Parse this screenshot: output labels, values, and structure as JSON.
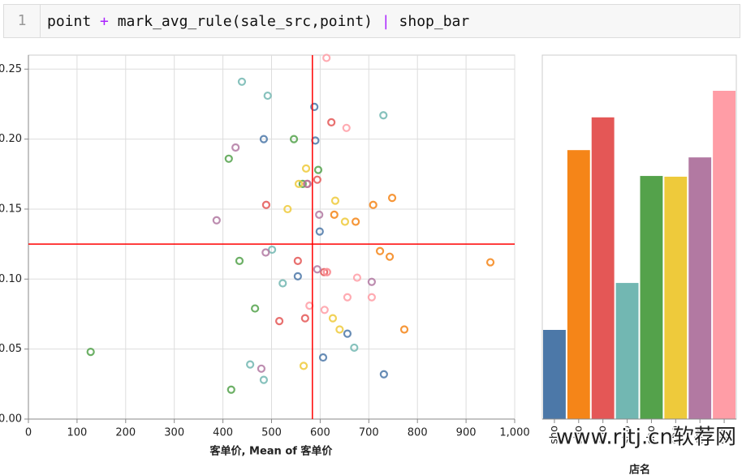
{
  "code": {
    "line_number": "1",
    "tokens": [
      "point",
      "+",
      "mark_avg_rule(sale_src,point)",
      "|",
      "shop_bar"
    ]
  },
  "watermark": "www.rjtj.cn软荐网",
  "chart_data": [
    {
      "type": "scatter",
      "x_label": "客单价, Mean of 客单价",
      "xlim": [
        0,
        1000
      ],
      "xticks": [
        0,
        100,
        200,
        300,
        400,
        500,
        600,
        700,
        800,
        900,
        {
          "value": 1000,
          "label": "1,000"
        }
      ],
      "ylim": [
        0,
        0.26
      ],
      "yticks": [
        {
          "value": 0,
          "label": "0.00"
        },
        {
          "value": 0.05,
          "label": "0.05"
        },
        {
          "value": 0.1,
          "label": "0.10"
        },
        {
          "value": 0.15,
          "label": "0.15"
        },
        {
          "value": 0.2,
          "label": "0.20"
        },
        {
          "value": 0.25,
          "label": "0.25"
        }
      ],
      "grid": true,
      "mean_x": 584,
      "mean_y": 0.125,
      "rule_color": "#ff0000",
      "series": [
        {
          "color": "#4c78a8",
          "x": [
            588,
            590,
            484,
            599,
            554,
            656,
            606,
            731
          ],
          "values": [
            0.223,
            0.199,
            0.2,
            0.134,
            0.102,
            0.061,
            0.044,
            0.032
          ]
        },
        {
          "color": "#f58518",
          "x": [
            748,
            709,
            673,
            629,
            723,
            743,
            950,
            773
          ],
          "values": [
            0.158,
            0.153,
            0.141,
            0.146,
            0.12,
            0.116,
            0.112,
            0.064
          ]
        },
        {
          "color": "#e45756",
          "x": [
            623,
            594,
            573,
            489,
            554,
            608,
            569,
            516,
            614
          ],
          "values": [
            0.212,
            0.171,
            0.168,
            0.153,
            0.113,
            0.105,
            0.072,
            0.07,
            0.105
          ]
        },
        {
          "color": "#72b7b2",
          "x": [
            439,
            492,
            730,
            501,
            523,
            670,
            456,
            484
          ],
          "values": [
            0.241,
            0.231,
            0.217,
            0.121,
            0.097,
            0.051,
            0.039,
            0.028
          ]
        },
        {
          "color": "#54a24b",
          "x": [
            412,
            546,
            596,
            564,
            434,
            466,
            128,
            417
          ],
          "values": [
            0.186,
            0.2,
            0.178,
            0.168,
            0.113,
            0.079,
            0.048,
            0.021
          ]
        },
        {
          "color": "#eeca3b",
          "x": [
            571,
            556,
            631,
            533,
            651,
            626,
            640,
            566
          ],
          "values": [
            0.179,
            0.168,
            0.156,
            0.15,
            0.141,
            0.072,
            0.064,
            0.038
          ]
        },
        {
          "color": "#b279a2",
          "x": [
            426,
            574,
            387,
            598,
            488,
            594,
            706,
            479
          ],
          "values": [
            0.194,
            0.168,
            0.142,
            0.146,
            0.119,
            0.107,
            0.098,
            0.036
          ]
        },
        {
          "color": "#ff9da6",
          "x": [
            613,
            654,
            614,
            676,
            656,
            706,
            578,
            609
          ],
          "values": [
            0.258,
            0.208,
            0.105,
            0.101,
            0.087,
            0.087,
            0.081,
            0.078
          ]
        }
      ]
    },
    {
      "type": "bar",
      "x_label": "店名",
      "ylim": [
        0,
        1
      ],
      "categories": [
        "sho",
        "sho",
        "sho",
        "sho",
        "sho",
        "sho",
        "sho",
        "sho"
      ],
      "values": [
        0.245,
        0.739,
        0.829,
        0.374,
        0.668,
        0.666,
        0.719,
        0.902
      ],
      "colors": [
        "#4c78a8",
        "#f58518",
        "#e45756",
        "#72b7b2",
        "#54a24b",
        "#eeca3b",
        "#b279a2",
        "#ff9da6"
      ]
    }
  ]
}
